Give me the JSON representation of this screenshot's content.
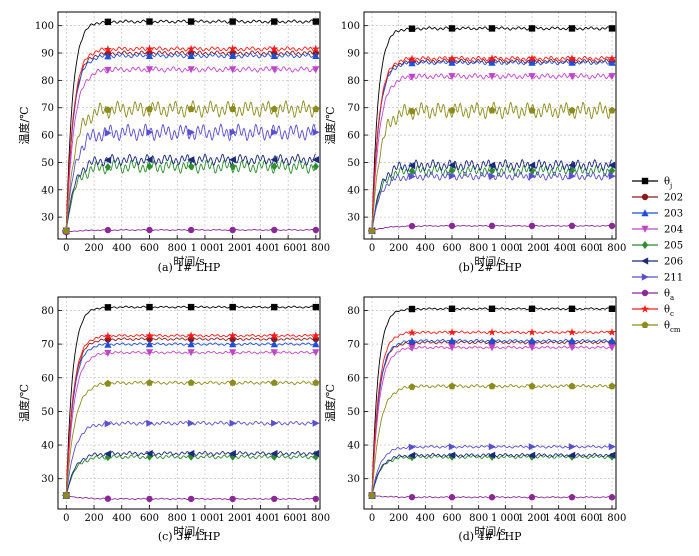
{
  "figure": {
    "legend": [
      {
        "key": "theta_j",
        "label": "θ",
        "sub": "j",
        "color": "#000000",
        "marker": "square"
      },
      {
        "key": "s202",
        "label": "202",
        "sub": "",
        "color": "#8b1a1a",
        "marker": "circle"
      },
      {
        "key": "s203",
        "label": "203",
        "sub": "",
        "color": "#1f4fd6",
        "marker": "triangle-up"
      },
      {
        "key": "s204",
        "label": "204",
        "sub": "",
        "color": "#c046c8",
        "marker": "triangle-down"
      },
      {
        "key": "s205",
        "label": "205",
        "sub": "",
        "color": "#2e8b2e",
        "marker": "diamond"
      },
      {
        "key": "s206",
        "label": "206",
        "sub": "",
        "color": "#1b2a7a",
        "marker": "triangle-left"
      },
      {
        "key": "s211",
        "label": "211",
        "sub": "",
        "color": "#5a4fcf",
        "marker": "triangle-right"
      },
      {
        "key": "theta_a",
        "label": "θ",
        "sub": "a",
        "color": "#8a2a96",
        "marker": "circle"
      },
      {
        "key": "theta_c",
        "label": "θ",
        "sub": "c",
        "color": "#ff1a1a",
        "marker": "star"
      },
      {
        "key": "theta_cm",
        "label": "θ",
        "sub": "cm",
        "color": "#8c8c1e",
        "marker": "pentagon"
      }
    ]
  },
  "chart_data": [
    {
      "type": "line",
      "caption": "(a) 1# LHP",
      "xlabel": "时间/s",
      "ylabel": "温度/℃",
      "xlim": [
        -60,
        1830
      ],
      "ylim": [
        22,
        105
      ],
      "xticks": [
        0,
        200,
        400,
        600,
        800,
        1000,
        1200,
        1400,
        1600,
        1800
      ],
      "xtick_labels": [
        "0",
        "200",
        "400",
        "600",
        "800",
        "1 000",
        "1 200",
        "1 400",
        "1 600",
        "1 800"
      ],
      "yticks": [
        30,
        40,
        50,
        60,
        70,
        80,
        90,
        100
      ],
      "ytick_labels": [
        "30",
        "40",
        "50",
        "60",
        "70",
        "80",
        "90",
        "100"
      ],
      "series": [
        {
          "key": "theta_j",
          "name": "θj",
          "values": {
            "start": 25,
            "final": 101.5,
            "ripple": 0.6,
            "tau": 45
          }
        },
        {
          "key": "s202",
          "name": "202",
          "values": {
            "start": 25,
            "final": 90,
            "ripple": 0.8,
            "tau": 50
          }
        },
        {
          "key": "s203",
          "name": "203",
          "values": {
            "start": 25,
            "final": 89,
            "ripple": 0.8,
            "tau": 50
          }
        },
        {
          "key": "s204",
          "name": "204",
          "values": {
            "start": 25,
            "final": 84,
            "ripple": 1.0,
            "tau": 55
          }
        },
        {
          "key": "s205",
          "name": "205",
          "values": {
            "start": 25,
            "final": 48.5,
            "ripple": 2.5,
            "tau": 60
          }
        },
        {
          "key": "s206",
          "name": "206",
          "values": {
            "start": 25,
            "final": 51,
            "ripple": 2.0,
            "tau": 60
          }
        },
        {
          "key": "s211",
          "name": "211",
          "values": {
            "start": 25,
            "final": 61,
            "ripple": 3.0,
            "tau": 60
          }
        },
        {
          "key": "theta_a",
          "name": "θa",
          "values": {
            "start": 24.5,
            "final": 25.3,
            "ripple": 0.2,
            "tau": 100
          }
        },
        {
          "key": "theta_c",
          "name": "θc",
          "values": {
            "start": 25,
            "final": 91.5,
            "ripple": 0.8,
            "tau": 50
          }
        },
        {
          "key": "theta_cm",
          "name": "θcm",
          "values": {
            "start": 25,
            "final": 69.5,
            "ripple": 3.0,
            "tau": 60
          }
        }
      ]
    },
    {
      "type": "line",
      "caption": "(b) 2# LHP",
      "xlabel": "时间/s",
      "ylabel": "温度/℃",
      "xlim": [
        -60,
        1830
      ],
      "ylim": [
        22,
        105
      ],
      "xticks": [
        0,
        200,
        400,
        600,
        800,
        1000,
        1200,
        1400,
        1600,
        1800
      ],
      "xtick_labels": [
        "0",
        "200",
        "400",
        "600",
        "800",
        "1 000",
        "1 200",
        "1 400",
        "1 600",
        "1 800"
      ],
      "yticks": [
        30,
        40,
        50,
        60,
        70,
        80,
        90,
        100
      ],
      "ytick_labels": [
        "30",
        "40",
        "50",
        "60",
        "70",
        "80",
        "90",
        "100"
      ],
      "series": [
        {
          "key": "theta_j",
          "name": "θj",
          "values": {
            "start": 25,
            "final": 99,
            "ripple": 0.6,
            "tau": 45
          }
        },
        {
          "key": "s202",
          "name": "202",
          "values": {
            "start": 25,
            "final": 87,
            "ripple": 0.8,
            "tau": 50
          }
        },
        {
          "key": "s203",
          "name": "203",
          "values": {
            "start": 25,
            "final": 86.5,
            "ripple": 0.8,
            "tau": 50
          }
        },
        {
          "key": "s204",
          "name": "204",
          "values": {
            "start": 25,
            "final": 81.5,
            "ripple": 1.0,
            "tau": 55
          }
        },
        {
          "key": "s205",
          "name": "205",
          "values": {
            "start": 25,
            "final": 47,
            "ripple": 2.0,
            "tau": 60
          }
        },
        {
          "key": "s206",
          "name": "206",
          "values": {
            "start": 25,
            "final": 49,
            "ripple": 2.0,
            "tau": 60
          }
        },
        {
          "key": "s211",
          "name": "211",
          "values": {
            "start": 25,
            "final": 45,
            "ripple": 1.5,
            "tau": 60
          }
        },
        {
          "key": "theta_a",
          "name": "θa",
          "values": {
            "start": 25,
            "final": 26.8,
            "ripple": 0.2,
            "tau": 100
          }
        },
        {
          "key": "theta_c",
          "name": "θc",
          "values": {
            "start": 25,
            "final": 88,
            "ripple": 0.8,
            "tau": 50
          }
        },
        {
          "key": "theta_cm",
          "name": "θcm",
          "values": {
            "start": 25,
            "final": 69,
            "ripple": 3.0,
            "tau": 60
          }
        }
      ]
    },
    {
      "type": "line",
      "caption": "(c) 3# LHP",
      "xlabel": "时间/s",
      "ylabel": "温度/℃",
      "xlim": [
        -60,
        1830
      ],
      "ylim": [
        21,
        84
      ],
      "xticks": [
        0,
        200,
        400,
        600,
        800,
        1000,
        1200,
        1400,
        1600,
        1800
      ],
      "xtick_labels": [
        "0",
        "200",
        "400",
        "600",
        "800",
        "1 000",
        "1 200",
        "1 400",
        "1 600",
        "1 800"
      ],
      "yticks": [
        30,
        40,
        50,
        60,
        70,
        80
      ],
      "ytick_labels": [
        "30",
        "40",
        "50",
        "60",
        "70",
        "80"
      ],
      "series": [
        {
          "key": "theta_j",
          "name": "θj",
          "values": {
            "start": 25,
            "final": 81,
            "ripple": 0.3,
            "tau": 45
          }
        },
        {
          "key": "s202",
          "name": "202",
          "values": {
            "start": 25,
            "final": 71.5,
            "ripple": 0.4,
            "tau": 50
          }
        },
        {
          "key": "s203",
          "name": "203",
          "values": {
            "start": 25,
            "final": 70,
            "ripple": 0.4,
            "tau": 50
          }
        },
        {
          "key": "s204",
          "name": "204",
          "values": {
            "start": 25,
            "final": 67.5,
            "ripple": 0.4,
            "tau": 55
          }
        },
        {
          "key": "s205",
          "name": "205",
          "values": {
            "start": 25,
            "final": 36.5,
            "ripple": 0.6,
            "tau": 60
          }
        },
        {
          "key": "s206",
          "name": "206",
          "values": {
            "start": 25,
            "final": 37.5,
            "ripple": 0.6,
            "tau": 60
          }
        },
        {
          "key": "s211",
          "name": "211",
          "values": {
            "start": 25,
            "final": 46.5,
            "ripple": 0.6,
            "tau": 60
          }
        },
        {
          "key": "theta_a",
          "name": "θa",
          "values": {
            "start": 25,
            "final": 24,
            "ripple": 0.2,
            "tau": 100
          }
        },
        {
          "key": "theta_c",
          "name": "θc",
          "values": {
            "start": 25,
            "final": 72.5,
            "ripple": 0.4,
            "tau": 50
          }
        },
        {
          "key": "theta_cm",
          "name": "θcm",
          "values": {
            "start": 25,
            "final": 58.5,
            "ripple": 0.5,
            "tau": 60
          }
        }
      ]
    },
    {
      "type": "line",
      "caption": "(d) 4# LHP",
      "xlabel": "时间/s",
      "ylabel": "温度/℃",
      "xlim": [
        -60,
        1830
      ],
      "ylim": [
        21,
        84
      ],
      "xticks": [
        0,
        200,
        400,
        600,
        800,
        1000,
        1200,
        1400,
        1600,
        1800
      ],
      "xtick_labels": [
        "0",
        "200",
        "400",
        "600",
        "800",
        "1 000",
        "1 200",
        "1 400",
        "1 600",
        "1 800"
      ],
      "yticks": [
        30,
        40,
        50,
        60,
        70,
        80
      ],
      "ytick_labels": [
        "30",
        "40",
        "50",
        "60",
        "70",
        "80"
      ],
      "series": [
        {
          "key": "theta_j",
          "name": "θj",
          "values": {
            "start": 25,
            "final": 80.5,
            "ripple": 0.3,
            "tau": 45
          }
        },
        {
          "key": "s202",
          "name": "202",
          "values": {
            "start": 25,
            "final": 70.5,
            "ripple": 0.4,
            "tau": 50
          }
        },
        {
          "key": "s203",
          "name": "203",
          "values": {
            "start": 25,
            "final": 71,
            "ripple": 0.4,
            "tau": 50
          }
        },
        {
          "key": "s204",
          "name": "204",
          "values": {
            "start": 25,
            "final": 69,
            "ripple": 0.4,
            "tau": 55
          }
        },
        {
          "key": "s205",
          "name": "205",
          "values": {
            "start": 25,
            "final": 36.5,
            "ripple": 0.5,
            "tau": 60
          }
        },
        {
          "key": "s206",
          "name": "206",
          "values": {
            "start": 25,
            "final": 37,
            "ripple": 0.5,
            "tau": 60
          }
        },
        {
          "key": "s211",
          "name": "211",
          "values": {
            "start": 25,
            "final": 39.5,
            "ripple": 0.4,
            "tau": 60
          }
        },
        {
          "key": "theta_a",
          "name": "θa",
          "values": {
            "start": 25,
            "final": 24.5,
            "ripple": 0.2,
            "tau": 100
          }
        },
        {
          "key": "theta_c",
          "name": "θc",
          "values": {
            "start": 25,
            "final": 73.5,
            "ripple": 0.4,
            "tau": 50
          }
        },
        {
          "key": "theta_cm",
          "name": "θcm",
          "values": {
            "start": 25,
            "final": 57.5,
            "ripple": 0.5,
            "tau": 60
          }
        }
      ]
    }
  ]
}
